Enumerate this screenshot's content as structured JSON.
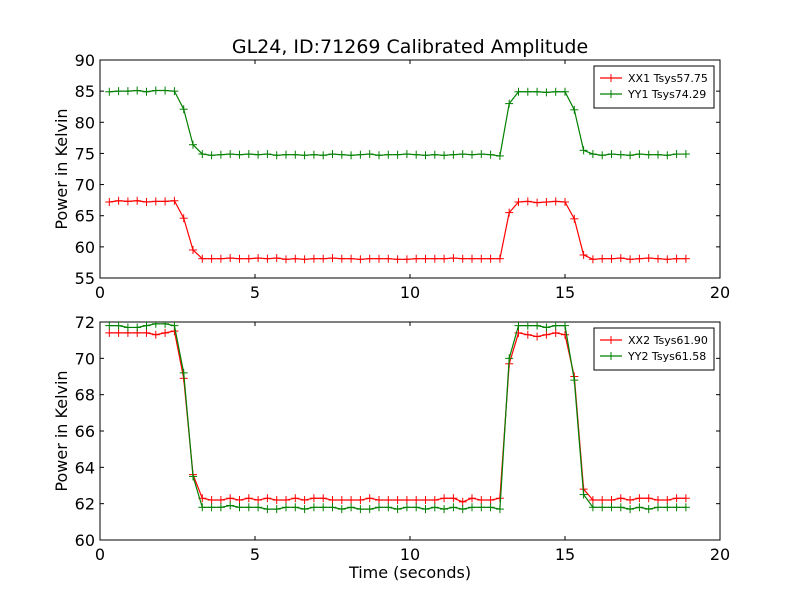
{
  "title": "GL24, ID:71269 Calibrated Amplitude",
  "colors": {
    "XX": "#ff0000",
    "YY": "#008000"
  },
  "chart_data": [
    {
      "type": "line",
      "xlabel": "",
      "ylabel": "Power in Kelvin",
      "xlim": [
        0,
        20
      ],
      "ylim": [
        55,
        90
      ],
      "xticks": [
        0,
        5,
        10,
        15,
        20
      ],
      "yticks": [
        55,
        60,
        65,
        70,
        75,
        80,
        85,
        90
      ],
      "grid": false,
      "legend_position": "top-right",
      "series": [
        {
          "name": "XX1 Tsys57.75",
          "color": "#ff0000",
          "x": [
            0.3,
            0.6,
            0.9,
            1.2,
            1.5,
            1.8,
            2.1,
            2.4,
            2.7,
            3.0,
            3.3,
            3.6,
            3.9,
            4.2,
            4.5,
            4.8,
            5.1,
            5.4,
            5.7,
            6.0,
            6.3,
            6.6,
            6.9,
            7.2,
            7.5,
            7.8,
            8.1,
            8.4,
            8.7,
            9.0,
            9.3,
            9.6,
            9.9,
            10.2,
            10.5,
            10.8,
            11.1,
            11.4,
            11.7,
            12.0,
            12.3,
            12.6,
            12.9,
            13.2,
            13.5,
            13.8,
            14.1,
            14.4,
            14.7,
            15.0,
            15.3,
            15.6,
            15.9,
            16.2,
            16.5,
            16.8,
            17.1,
            17.4,
            17.7,
            18.0,
            18.3,
            18.6,
            18.9
          ],
          "y": [
            67.2,
            67.4,
            67.3,
            67.4,
            67.2,
            67.3,
            67.3,
            67.4,
            64.6,
            59.5,
            58.1,
            58.1,
            58.1,
            58.2,
            58.1,
            58.1,
            58.2,
            58.1,
            58.2,
            58.0,
            58.1,
            58.0,
            58.1,
            58.1,
            58.2,
            58.1,
            58.1,
            58.0,
            58.1,
            58.1,
            58.1,
            58.0,
            58.0,
            58.1,
            58.1,
            58.1,
            58.1,
            58.2,
            58.1,
            58.1,
            58.1,
            58.1,
            58.1,
            65.5,
            67.2,
            67.3,
            67.1,
            67.2,
            67.3,
            67.2,
            64.5,
            58.7,
            58.0,
            58.1,
            58.1,
            58.2,
            58.0,
            58.1,
            58.2,
            58.1,
            58.0,
            58.1,
            58.1
          ]
        },
        {
          "name": "YY1 Tsys74.29",
          "color": "#008000",
          "x": [
            0.3,
            0.6,
            0.9,
            1.2,
            1.5,
            1.8,
            2.1,
            2.4,
            2.7,
            3.0,
            3.3,
            3.6,
            3.9,
            4.2,
            4.5,
            4.8,
            5.1,
            5.4,
            5.7,
            6.0,
            6.3,
            6.6,
            6.9,
            7.2,
            7.5,
            7.8,
            8.1,
            8.4,
            8.7,
            9.0,
            9.3,
            9.6,
            9.9,
            10.2,
            10.5,
            10.8,
            11.1,
            11.4,
            11.7,
            12.0,
            12.3,
            12.6,
            12.9,
            13.2,
            13.5,
            13.8,
            14.1,
            14.4,
            14.7,
            15.0,
            15.3,
            15.6,
            15.9,
            16.2,
            16.5,
            16.8,
            17.1,
            17.4,
            17.7,
            18.0,
            18.3,
            18.6,
            18.9
          ],
          "y": [
            84.9,
            85.0,
            85.0,
            85.1,
            84.9,
            85.1,
            85.1,
            85.0,
            82.1,
            76.4,
            74.9,
            74.7,
            74.8,
            74.9,
            74.8,
            74.9,
            74.8,
            74.9,
            74.7,
            74.8,
            74.8,
            74.7,
            74.8,
            74.7,
            74.9,
            74.8,
            74.7,
            74.8,
            74.9,
            74.7,
            74.8,
            74.8,
            74.9,
            74.8,
            74.7,
            74.8,
            74.7,
            74.8,
            74.9,
            74.8,
            74.9,
            74.8,
            74.6,
            83.0,
            84.9,
            84.9,
            84.9,
            84.8,
            84.9,
            84.9,
            82.0,
            75.5,
            74.9,
            74.7,
            74.9,
            74.8,
            74.7,
            74.9,
            74.8,
            74.8,
            74.7,
            74.9,
            74.9
          ]
        }
      ]
    },
    {
      "type": "line",
      "xlabel": "Time (seconds)",
      "ylabel": "Power in Kelvin",
      "xlim": [
        0,
        20
      ],
      "ylim": [
        60,
        72
      ],
      "xticks": [
        0,
        5,
        10,
        15,
        20
      ],
      "yticks": [
        60,
        62,
        64,
        66,
        68,
        70,
        72
      ],
      "grid": false,
      "legend_position": "top-right",
      "series": [
        {
          "name": "XX2 Tsys61.90",
          "color": "#ff0000",
          "x": [
            0.3,
            0.6,
            0.9,
            1.2,
            1.5,
            1.8,
            2.1,
            2.4,
            2.7,
            3.0,
            3.3,
            3.6,
            3.9,
            4.2,
            4.5,
            4.8,
            5.1,
            5.4,
            5.7,
            6.0,
            6.3,
            6.6,
            6.9,
            7.2,
            7.5,
            7.8,
            8.1,
            8.4,
            8.7,
            9.0,
            9.3,
            9.6,
            9.9,
            10.2,
            10.5,
            10.8,
            11.1,
            11.4,
            11.7,
            12.0,
            12.3,
            12.6,
            12.9,
            13.2,
            13.5,
            13.8,
            14.1,
            14.4,
            14.7,
            15.0,
            15.3,
            15.6,
            15.9,
            16.2,
            16.5,
            16.8,
            17.1,
            17.4,
            17.7,
            18.0,
            18.3,
            18.6,
            18.9
          ],
          "y": [
            71.4,
            71.4,
            71.4,
            71.4,
            71.4,
            71.3,
            71.4,
            71.5,
            68.9,
            63.6,
            62.3,
            62.2,
            62.2,
            62.3,
            62.2,
            62.3,
            62.2,
            62.3,
            62.2,
            62.2,
            62.3,
            62.2,
            62.3,
            62.3,
            62.2,
            62.2,
            62.2,
            62.2,
            62.3,
            62.2,
            62.2,
            62.2,
            62.2,
            62.2,
            62.2,
            62.2,
            62.3,
            62.3,
            62.1,
            62.3,
            62.2,
            62.2,
            62.3,
            69.7,
            71.4,
            71.3,
            71.2,
            71.3,
            71.4,
            71.3,
            69.0,
            62.8,
            62.2,
            62.2,
            62.2,
            62.3,
            62.2,
            62.3,
            62.3,
            62.2,
            62.2,
            62.3,
            62.3
          ]
        },
        {
          "name": "YY2 Tsys61.58",
          "color": "#008000",
          "x": [
            0.3,
            0.6,
            0.9,
            1.2,
            1.5,
            1.8,
            2.1,
            2.4,
            2.7,
            3.0,
            3.3,
            3.6,
            3.9,
            4.2,
            4.5,
            4.8,
            5.1,
            5.4,
            5.7,
            6.0,
            6.3,
            6.6,
            6.9,
            7.2,
            7.5,
            7.8,
            8.1,
            8.4,
            8.7,
            9.0,
            9.3,
            9.6,
            9.9,
            10.2,
            10.5,
            10.8,
            11.1,
            11.4,
            11.7,
            12.0,
            12.3,
            12.6,
            12.9,
            13.2,
            13.5,
            13.8,
            14.1,
            14.4,
            14.7,
            15.0,
            15.3,
            15.6,
            15.9,
            16.2,
            16.5,
            16.8,
            17.1,
            17.4,
            17.7,
            18.0,
            18.3,
            18.6,
            18.9
          ],
          "y": [
            71.8,
            71.8,
            71.7,
            71.7,
            71.8,
            71.9,
            71.9,
            71.8,
            69.2,
            63.5,
            61.8,
            61.8,
            61.8,
            61.9,
            61.8,
            61.8,
            61.8,
            61.7,
            61.7,
            61.8,
            61.8,
            61.7,
            61.8,
            61.8,
            61.8,
            61.7,
            61.8,
            61.7,
            61.7,
            61.8,
            61.8,
            61.7,
            61.8,
            61.8,
            61.7,
            61.8,
            61.7,
            61.8,
            61.7,
            61.8,
            61.8,
            61.8,
            61.7,
            70.0,
            71.8,
            71.8,
            71.8,
            71.7,
            71.8,
            71.8,
            68.8,
            62.5,
            61.8,
            61.8,
            61.8,
            61.8,
            61.7,
            61.8,
            61.7,
            61.8,
            61.8,
            61.8,
            61.8
          ]
        }
      ]
    }
  ]
}
